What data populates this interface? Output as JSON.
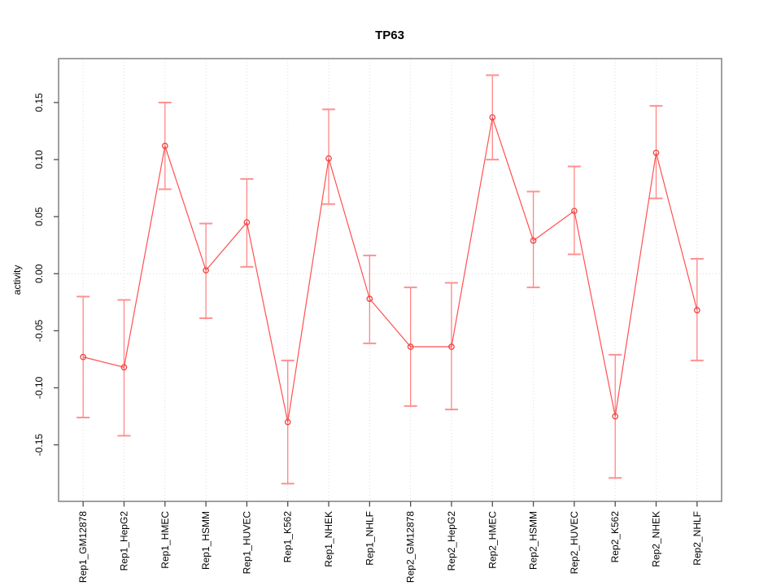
{
  "chart_data": {
    "type": "line",
    "title": "TP63",
    "xlabel": "",
    "ylabel": "activity",
    "ylim": [
      -0.1995,
      0.1885
    ],
    "yticks": [
      -0.15,
      -0.1,
      -0.05,
      0.0,
      0.05,
      0.1,
      0.15
    ],
    "ytick_labels": [
      "-0.15",
      "-0.10",
      "-0.05",
      "0.00",
      "0.05",
      "0.10",
      "0.15"
    ],
    "grid": "vertical-dotted-per-category",
    "zero_line": true,
    "legend": "none",
    "marker": "open-circle",
    "categories": [
      "Rep1_GM12878",
      "Rep1_HepG2",
      "Rep1_HMEC",
      "Rep1_HSMM",
      "Rep1_HUVEC",
      "Rep1_K562",
      "Rep1_NHEK",
      "Rep1_NHLF",
      "Rep2_GM12878",
      "Rep2_HepG2",
      "Rep2_HMEC",
      "Rep2_HSMM",
      "Rep2_HUVEC",
      "Rep2_K562",
      "Rep2_NHEK",
      "Rep2_NHLF"
    ],
    "series": [
      {
        "name": "TP63 activity",
        "values": [
          -0.073,
          -0.082,
          0.112,
          0.003,
          0.045,
          -0.13,
          0.101,
          -0.022,
          -0.064,
          -0.064,
          0.137,
          0.029,
          0.055,
          -0.125,
          0.106,
          -0.032
        ],
        "error_low": [
          -0.126,
          -0.142,
          0.074,
          -0.039,
          0.006,
          -0.184,
          0.061,
          -0.061,
          -0.116,
          -0.119,
          0.1,
          -0.012,
          0.017,
          -0.179,
          0.066,
          -0.076
        ],
        "error_high": [
          -0.02,
          -0.023,
          0.15,
          0.044,
          0.083,
          -0.076,
          0.144,
          0.016,
          -0.012,
          -0.008,
          0.174,
          0.072,
          0.094,
          -0.071,
          0.147,
          0.013
        ]
      }
    ],
    "colors": {
      "line": "#ff5050",
      "point": "#ef4242",
      "errorbar": "#ff8585",
      "errorbar_cap": "#ff9090",
      "grid": "#dcdcdc",
      "zero_line": "#d8d8d8",
      "axis_box": "#808080",
      "tick": "#4d4d4d",
      "text": "#000000"
    }
  }
}
